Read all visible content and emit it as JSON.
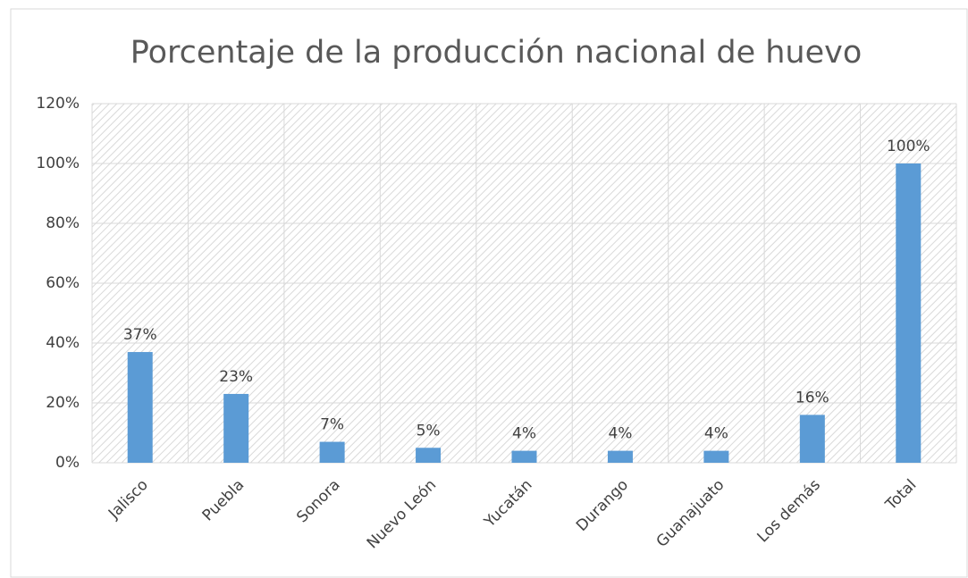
{
  "chart_data": {
    "type": "bar",
    "title": "Porcentaje de la producción nacional de huevo",
    "categories": [
      "Jalisco",
      "Puebla",
      "Sonora",
      "Nuevo León",
      "Yucatán",
      "Durango",
      "Guanajuato",
      "Los demás",
      "Total"
    ],
    "values": [
      37,
      23,
      7,
      5,
      4,
      4,
      4,
      16,
      100
    ],
    "value_labels": [
      "37%",
      "23%",
      "7%",
      "5%",
      "4%",
      "4%",
      "4%",
      "16%",
      "100%"
    ],
    "color": "#5b9bd5",
    "ylim": [
      0,
      120
    ],
    "yticks": [
      {
        "value": 0,
        "label": "0%"
      },
      {
        "value": 20,
        "label": "20%"
      },
      {
        "value": 40,
        "label": "40%"
      },
      {
        "value": 60,
        "label": "60%"
      },
      {
        "value": 80,
        "label": "80%"
      },
      {
        "value": 100,
        "label": "100%"
      },
      {
        "value": 120,
        "label": "120%"
      }
    ],
    "grid": true
  }
}
